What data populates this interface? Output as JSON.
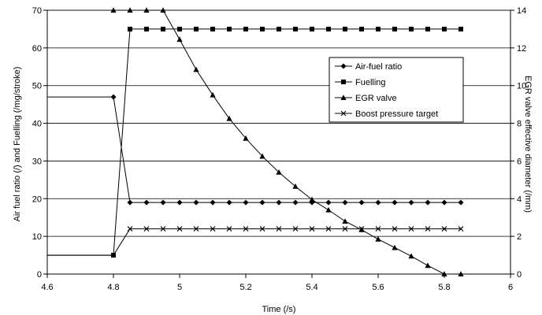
{
  "chart_data": {
    "type": "line",
    "xlabel": "Time (/s)",
    "ylabel": "Air fuel ratio (/) and Fuelling (/mg/stroke)",
    "y2label": "EGR valve effective diameter (/mm)",
    "xlim": [
      4.6,
      6
    ],
    "ylim": [
      0,
      70
    ],
    "y2lim": [
      0,
      14
    ],
    "xticks": [
      4.6,
      4.8,
      5,
      5.2,
      5.4,
      5.6,
      5.8,
      6
    ],
    "xtick_labels": [
      "4.6",
      "4.8",
      "5",
      "5.2",
      "5.4",
      "5.6",
      "5.8",
      "6"
    ],
    "yticks": [
      0,
      10,
      20,
      30,
      40,
      50,
      60,
      70
    ],
    "y2ticks": [
      0,
      2,
      4,
      6,
      8,
      10,
      12,
      14
    ],
    "grid": "horizontal",
    "legend_position": "right",
    "series": [
      {
        "name": "Air-fuel ratio",
        "axis": "left",
        "marker": "diamond",
        "x": [
          4.6,
          4.8,
          4.85,
          4.9,
          4.95,
          5.0,
          5.05,
          5.1,
          5.15,
          5.2,
          5.25,
          5.3,
          5.35,
          5.4,
          5.45,
          5.5,
          5.55,
          5.6,
          5.65,
          5.7,
          5.75,
          5.8,
          5.85
        ],
        "y": [
          47,
          47,
          19,
          19,
          19,
          19,
          19,
          19,
          19,
          19,
          19,
          19,
          19,
          19,
          19,
          19,
          19,
          19,
          19,
          19,
          19,
          19,
          19
        ],
        "marker_from": 1
      },
      {
        "name": "Fuelling",
        "axis": "left",
        "marker": "square",
        "x": [
          4.6,
          4.8,
          4.85,
          4.9,
          4.95,
          5.0,
          5.05,
          5.1,
          5.15,
          5.2,
          5.25,
          5.3,
          5.35,
          5.4,
          5.45,
          5.5,
          5.55,
          5.6,
          5.65,
          5.7,
          5.75,
          5.8,
          5.85
        ],
        "y": [
          5,
          5,
          65,
          65,
          65,
          65,
          65,
          65,
          65,
          65,
          65,
          65,
          65,
          65,
          65,
          65,
          65,
          65,
          65,
          65,
          65,
          65,
          65
        ],
        "marker_from": 1
      },
      {
        "name": "EGR valve",
        "axis": "right",
        "marker": "triangle",
        "x": [
          4.8,
          4.85,
          4.9,
          4.95,
          5.0,
          5.05,
          5.1,
          5.15,
          5.2,
          5.25,
          5.3,
          5.35,
          5.4,
          5.45,
          5.5,
          5.55,
          5.6,
          5.65,
          5.7,
          5.75,
          5.8,
          5.85
        ],
        "y": [
          14,
          14,
          14,
          14,
          12.45,
          10.85,
          9.5,
          8.25,
          7.2,
          6.25,
          5.4,
          4.65,
          3.95,
          3.4,
          2.8,
          2.35,
          1.85,
          1.4,
          0.95,
          0.45,
          0,
          0
        ],
        "marker_from": 0
      },
      {
        "name": "Boost pressure target",
        "axis": "left",
        "marker": "x",
        "x": [
          4.6,
          4.8,
          4.85,
          4.9,
          4.95,
          5.0,
          5.05,
          5.1,
          5.15,
          5.2,
          5.25,
          5.3,
          5.35,
          5.4,
          5.45,
          5.5,
          5.55,
          5.6,
          5.65,
          5.7,
          5.75,
          5.8,
          5.85
        ],
        "y": [
          5,
          5,
          12,
          12,
          12,
          12,
          12,
          12,
          12,
          12,
          12,
          12,
          12,
          12,
          12,
          12,
          12,
          12,
          12,
          12,
          12,
          12,
          12
        ],
        "marker_from": 2
      }
    ]
  }
}
